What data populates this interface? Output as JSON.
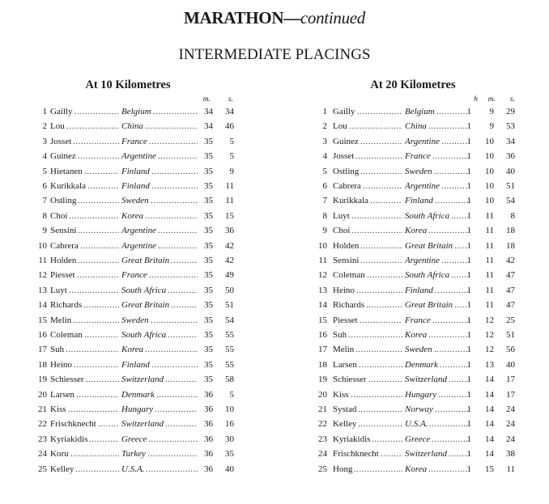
{
  "title": {
    "main": "MARATHON—",
    "suffix": "continued"
  },
  "subtitle": "INTERMEDIATE PLACINGS",
  "left": {
    "heading": "At 10 Kilometres",
    "columns": [
      "m.",
      "s."
    ],
    "rows": [
      [
        "1",
        "Gailly",
        "Belgium",
        "34",
        "34"
      ],
      [
        "2",
        "Lou",
        "China",
        "34",
        "46"
      ],
      [
        "3",
        "Josset",
        "France",
        "35",
        "5"
      ],
      [
        "4",
        "Guinez",
        "Argentine",
        "35",
        "5"
      ],
      [
        "5",
        "Hietanen",
        "Finland",
        "35",
        "9"
      ],
      [
        "6",
        "Kurikkala",
        "Finland",
        "35",
        "11"
      ],
      [
        "7",
        "Ostling",
        "Sweden",
        "35",
        "11"
      ],
      [
        "8",
        "Choi",
        "Korea",
        "35",
        "15"
      ],
      [
        "9",
        "Sensini",
        "Argentine",
        "35",
        "36"
      ],
      [
        "10",
        "Cabrera",
        "Argentine",
        "35",
        "42"
      ],
      [
        "11",
        "Holden",
        "Great Britain",
        "35",
        "42"
      ],
      [
        "12",
        "Piesset",
        "France",
        "35",
        "49"
      ],
      [
        "13",
        "Luyt",
        "South Africa",
        "35",
        "50"
      ],
      [
        "14",
        "Richards",
        "Great Britain",
        "35",
        "51"
      ],
      [
        "15",
        "Melin",
        "Sweden",
        "35",
        "54"
      ],
      [
        "16",
        "Coleman",
        "South Africa",
        "35",
        "55"
      ],
      [
        "17",
        "Suh",
        "Korea",
        "35",
        "55"
      ],
      [
        "18",
        "Heino",
        "Finland",
        "35",
        "55"
      ],
      [
        "19",
        "Schiesser",
        "Switzerland",
        "35",
        "58"
      ],
      [
        "20",
        "Larsen",
        "Denmark",
        "36",
        "5"
      ],
      [
        "21",
        "Kiss",
        "Hungary",
        "36",
        "10"
      ],
      [
        "22",
        "Frischknecht",
        "Switzerland",
        "36",
        "16"
      ],
      [
        "23",
        "Kyriakidis",
        "Greece",
        "36",
        "30"
      ],
      [
        "24",
        "Koru",
        "Turkey",
        "36",
        "35"
      ],
      [
        "25",
        "Kelley",
        "U.S.A.",
        "36",
        "40"
      ]
    ]
  },
  "right": {
    "heading": "At 20 Kilometres",
    "columns": [
      "h",
      "m.",
      "s."
    ],
    "rows": [
      [
        "1",
        "Gailly",
        "Belgium",
        "1",
        "9",
        "29"
      ],
      [
        "2",
        "Lou",
        "China",
        "1",
        "9",
        "53"
      ],
      [
        "3",
        "Guinez",
        "Argentine",
        "1",
        "10",
        "34"
      ],
      [
        "4",
        "Josset",
        "France",
        "1",
        "10",
        "36"
      ],
      [
        "5",
        "Ostling",
        "Sweden",
        "1",
        "10",
        "40"
      ],
      [
        "6",
        "Cabrera",
        "Argentine",
        "1",
        "10",
        "51"
      ],
      [
        "7",
        "Kurikkala",
        "Finland",
        "1",
        "10",
        "54"
      ],
      [
        "8",
        "Luyt",
        "South Africa",
        "1",
        "11",
        "8"
      ],
      [
        "9",
        "Choi",
        "Korea",
        "1",
        "11",
        "18"
      ],
      [
        "10",
        "Holden",
        "Great Britain",
        "1",
        "11",
        "18"
      ],
      [
        "11",
        "Sensini",
        "Argentine",
        "1",
        "11",
        "42"
      ],
      [
        "12",
        "Coleman",
        "South Africa",
        "1",
        "11",
        "47"
      ],
      [
        "13",
        "Heino",
        "Finland",
        "1",
        "11",
        "47"
      ],
      [
        "14",
        "Richards",
        "Great Britain",
        "1",
        "11",
        "47"
      ],
      [
        "15",
        "Piesset",
        "France",
        "1",
        "12",
        "25"
      ],
      [
        "16",
        "Suh",
        "Korea",
        "1",
        "12",
        "51"
      ],
      [
        "17",
        "Melin",
        "Sweden",
        "1",
        "12",
        "56"
      ],
      [
        "18",
        "Larsen",
        "Denmark",
        "1",
        "13",
        "40"
      ],
      [
        "19",
        "Schiesser",
        "Switzerland",
        "1",
        "14",
        "17"
      ],
      [
        "20",
        "Kiss",
        "Hungary",
        "1",
        "14",
        "17"
      ],
      [
        "21",
        "Systad",
        "Norway",
        "1",
        "14",
        "24"
      ],
      [
        "22",
        "Kelley",
        "U.S.A.",
        "1",
        "14",
        "24"
      ],
      [
        "23",
        "Kyriakidis",
        "Greece",
        "1",
        "14",
        "24"
      ],
      [
        "24",
        "Frischknecht",
        "Switzerland",
        "1",
        "14",
        "38"
      ],
      [
        "25",
        "Hong",
        "Korea",
        "1",
        "15",
        "11"
      ]
    ]
  }
}
